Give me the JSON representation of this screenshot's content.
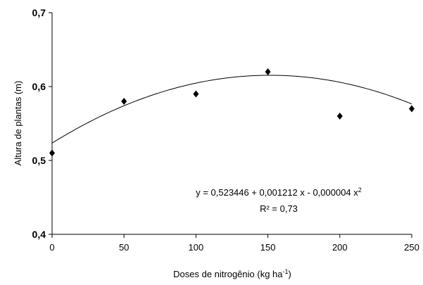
{
  "chart_data": {
    "type": "scatter",
    "xlabel": "Doses de nitrogênio (kg ha",
    "xlabel_sup": "-1",
    "xlabel_close": ")",
    "ylabel": "Altura de plantas (m)",
    "xlim": [
      0,
      250
    ],
    "ylim": [
      0.4,
      0.7
    ],
    "x_ticks": [
      0,
      50,
      100,
      150,
      200,
      250
    ],
    "x_tick_labels": [
      "0",
      "50",
      "100",
      "150",
      "200",
      "250"
    ],
    "y_ticks": [
      0.4,
      0.5,
      0.6,
      0.7
    ],
    "y_tick_labels": [
      "0,4",
      "0,5",
      "0,6",
      "0,7"
    ],
    "grid": false,
    "marker": "diamond",
    "points": [
      {
        "x": 0,
        "y": 0.51
      },
      {
        "x": 50,
        "y": 0.58
      },
      {
        "x": 100,
        "y": 0.59
      },
      {
        "x": 150,
        "y": 0.62
      },
      {
        "x": 200,
        "y": 0.56
      },
      {
        "x": 250,
        "y": 0.57
      }
    ],
    "fit": {
      "type": "quadratic",
      "a": 0.523446,
      "b": 0.001212,
      "c": -4e-06
    },
    "equation_text": "y = 0,523446 + 0,001212 x - 0,000004 x",
    "equation_sup": "2",
    "r2_text": "R² = 0,73",
    "colors": {
      "marker": "#000000",
      "line": "#000000",
      "axis": "#000000"
    }
  }
}
